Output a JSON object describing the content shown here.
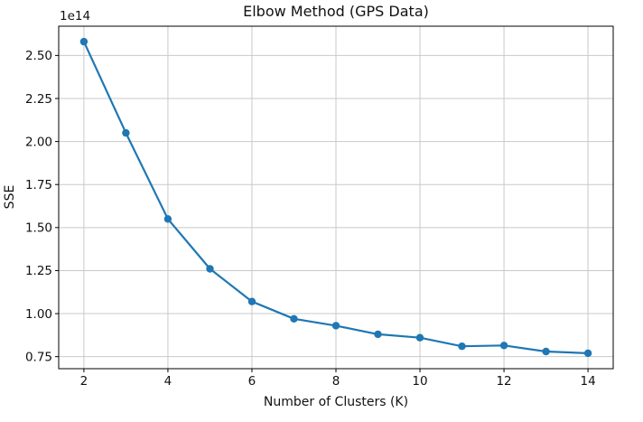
{
  "chart_data": {
    "type": "line",
    "title": "Elbow Method (GPS Data)",
    "xlabel": "Number of Clusters (K)",
    "ylabel": "SSE",
    "offset_text": "1e14",
    "x": [
      2,
      3,
      4,
      5,
      6,
      7,
      8,
      9,
      10,
      11,
      12,
      13,
      14
    ],
    "values": [
      2.58,
      2.05,
      1.55,
      1.26,
      1.07,
      0.97,
      0.93,
      0.88,
      0.86,
      0.81,
      0.815,
      0.78,
      0.77
    ],
    "values_unit": "x1e14 SSE",
    "xlim": [
      1.4,
      14.6
    ],
    "ylim": [
      0.68,
      2.67
    ],
    "xticks": [
      2,
      4,
      6,
      8,
      10,
      12,
      14
    ],
    "xtick_labels": [
      "2",
      "4",
      "6",
      "8",
      "10",
      "12",
      "14"
    ],
    "yticks": [
      0.75,
      1.0,
      1.25,
      1.5,
      1.75,
      2.0,
      2.25,
      2.5
    ],
    "ytick_labels": [
      "0.75",
      "1.00",
      "1.25",
      "1.50",
      "1.75",
      "2.00",
      "2.25",
      "2.50"
    ],
    "grid": true,
    "legend": "none",
    "marker": "o",
    "colors": {
      "line": "#1f77b4",
      "grid": "#c9c9c9",
      "axis": "#000000",
      "text": "#111111",
      "background": "#ffffff"
    }
  }
}
